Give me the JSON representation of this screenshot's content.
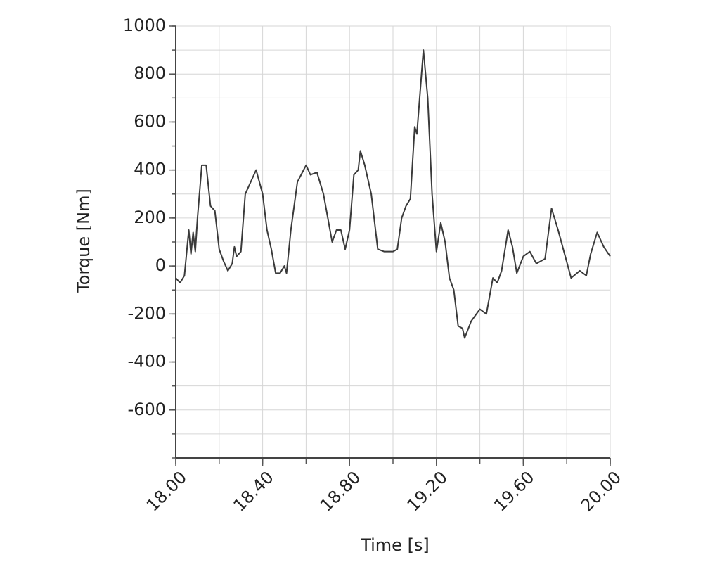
{
  "chart_data": {
    "type": "line",
    "xlabel": "Time [s]",
    "ylabel": "Torque [Nm]",
    "xlim": [
      18,
      20
    ],
    "ylim": [
      -800,
      1000
    ],
    "xticks": [
      {
        "value": 18,
        "label": "18.00"
      },
      {
        "value": 18.4,
        "label": "18.40"
      },
      {
        "value": 18.8,
        "label": "18.80"
      },
      {
        "value": 19.2,
        "label": "19.20"
      },
      {
        "value": 19.6,
        "label": "19.60"
      },
      {
        "value": 20,
        "label": "20.00"
      }
    ],
    "yticks": [
      1000,
      800,
      600,
      400,
      200,
      0,
      -200,
      -400,
      -600
    ],
    "grid": true,
    "series": [
      {
        "color": "#3a3a3a",
        "x": [
          18.0,
          18.02,
          18.04,
          18.06,
          18.07,
          18.08,
          18.09,
          18.1,
          18.12,
          18.14,
          18.16,
          18.18,
          18.2,
          18.22,
          18.24,
          18.26,
          18.27,
          18.28,
          18.3,
          18.32,
          18.34,
          18.37,
          18.4,
          18.42,
          18.44,
          18.46,
          18.48,
          18.5,
          18.51,
          18.53,
          18.56,
          18.6,
          18.62,
          18.65,
          18.68,
          18.7,
          18.72,
          18.74,
          18.76,
          18.78,
          18.8,
          18.82,
          18.84,
          18.85,
          18.87,
          18.9,
          18.93,
          18.96,
          19.0,
          19.02,
          19.04,
          19.06,
          19.08,
          19.1,
          19.11,
          19.14,
          19.16,
          19.18,
          19.2,
          19.22,
          19.24,
          19.26,
          19.28,
          19.3,
          19.32,
          19.33,
          19.36,
          19.4,
          19.43,
          19.46,
          19.48,
          19.5,
          19.53,
          19.55,
          19.57,
          19.6,
          19.63,
          19.66,
          19.7,
          19.73,
          19.76,
          19.79,
          19.82,
          19.86,
          19.89,
          19.91,
          19.94,
          19.97,
          20.0
        ],
        "values": [
          -50,
          -70,
          -40,
          150,
          50,
          140,
          60,
          200,
          420,
          420,
          250,
          230,
          70,
          20,
          -20,
          10,
          80,
          40,
          60,
          300,
          340,
          400,
          300,
          150,
          70,
          -30,
          -30,
          0,
          -30,
          150,
          350,
          420,
          380,
          390,
          300,
          200,
          100,
          150,
          150,
          70,
          150,
          380,
          400,
          480,
          420,
          300,
          70,
          60,
          60,
          70,
          200,
          250,
          280,
          580,
          550,
          900,
          700,
          300,
          60,
          180,
          100,
          -50,
          -100,
          -250,
          -260,
          -300,
          -230,
          -180,
          -200,
          -50,
          -70,
          -20,
          150,
          80,
          -30,
          40,
          60,
          10,
          30,
          240,
          150,
          50,
          -50,
          -20,
          -40,
          50,
          140,
          80,
          40
        ]
      }
    ]
  }
}
